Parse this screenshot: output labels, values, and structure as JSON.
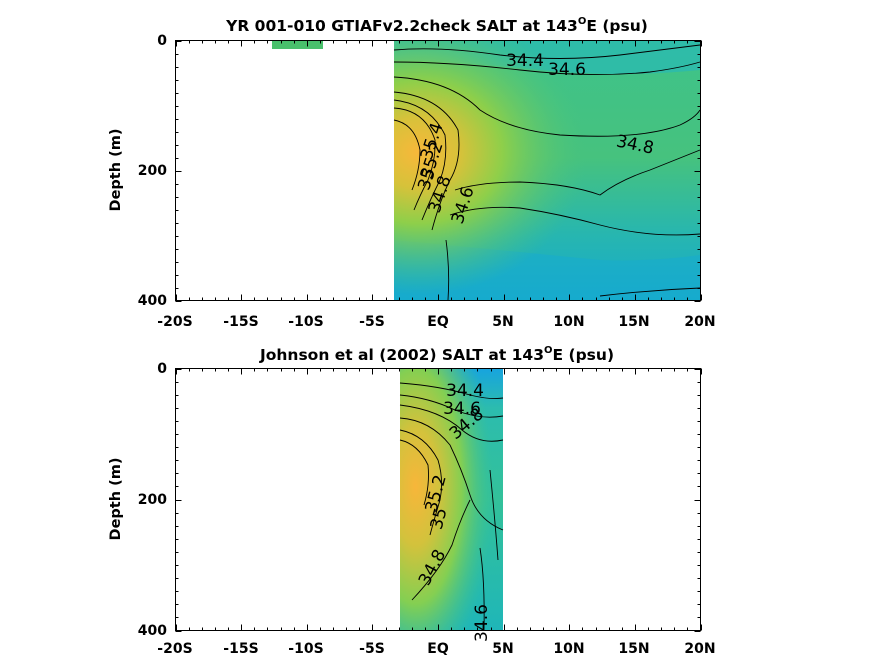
{
  "chart_data": [
    {
      "type": "contour",
      "title": "YR 001-010 GTIAFv2.2check SALT at 143",
      "title_degree": "O",
      "title_suffix": "E (psu)",
      "xlabel": "",
      "ylabel": "Depth (m)",
      "xlim": [
        -20,
        20
      ],
      "ylim": [
        400,
        0
      ],
      "x_ticks": [
        -20,
        -15,
        -10,
        -5,
        0,
        5,
        10,
        15,
        20
      ],
      "x_tick_labels": [
        "-20S",
        "-15S",
        "-10S",
        "-5S",
        "EQ",
        "5N",
        "10N",
        "15N",
        "20N"
      ],
      "y_ticks": [
        0,
        200,
        400
      ],
      "y_tick_labels": [
        "0",
        "200",
        "400"
      ],
      "data_extent": {
        "x": [
          -3.2,
          20
        ],
        "y": [
          0,
          400
        ]
      },
      "colors": {
        "fresh": "#1aa6d8",
        "mid": "#2fbf9a",
        "salty": "#9ccf3f",
        "max": "#f6b73a"
      },
      "contour_labels": [
        {
          "text": "34.4",
          "x": 9.2,
          "y": 30
        },
        {
          "text": "34.6",
          "x": 10.8,
          "y": 45
        },
        {
          "text": "34.8",
          "x": 15.4,
          "y": 160
        },
        {
          "text": "35.4",
          "x": 0.1,
          "y": 150
        },
        {
          "text": "35.2",
          "x": 0.1,
          "y": 196
        },
        {
          "text": "35",
          "x": -0.5,
          "y": 218
        },
        {
          "text": "34.8",
          "x": -0.2,
          "y": 246
        },
        {
          "text": "34.6",
          "x": 2.3,
          "y": 260
        }
      ]
    },
    {
      "type": "contour",
      "title": "Johnson et al (2002) SALT at 143",
      "title_degree": "O",
      "title_suffix": "E (psu)",
      "xlabel": "",
      "ylabel": "Depth (m)",
      "xlim": [
        -20,
        20
      ],
      "ylim": [
        400,
        0
      ],
      "x_ticks": [
        -20,
        -15,
        -10,
        -5,
        0,
        5,
        10,
        15,
        20
      ],
      "x_tick_labels": [
        "-20S",
        "-15S",
        "-10S",
        "-5S",
        "EQ",
        "5N",
        "10N",
        "15N",
        "20N"
      ],
      "y_ticks": [
        0,
        200,
        400
      ],
      "y_tick_labels": [
        "0",
        "200",
        "400"
      ],
      "data_extent": {
        "x": [
          -2.7,
          5.1
        ],
        "y": [
          0,
          400
        ]
      },
      "colors": {
        "fresh": "#1aa6d8",
        "mid": "#2fbf9a",
        "salty": "#9ccf3f",
        "max": "#f6b73a"
      },
      "contour_labels": [
        {
          "text": "34.4",
          "x": 2.2,
          "y": 34
        },
        {
          "text": "34.6",
          "x": 2.0,
          "y": 60
        },
        {
          "text": "34.8",
          "x": 2.5,
          "y": 80
        },
        {
          "text": "35.2",
          "x": 0.4,
          "y": 200
        },
        {
          "text": "35",
          "x": 0.2,
          "y": 230
        },
        {
          "text": "34.8",
          "x": 0.0,
          "y": 300
        },
        {
          "text": "34.6",
          "x": 3.5,
          "y": 385
        }
      ]
    }
  ]
}
